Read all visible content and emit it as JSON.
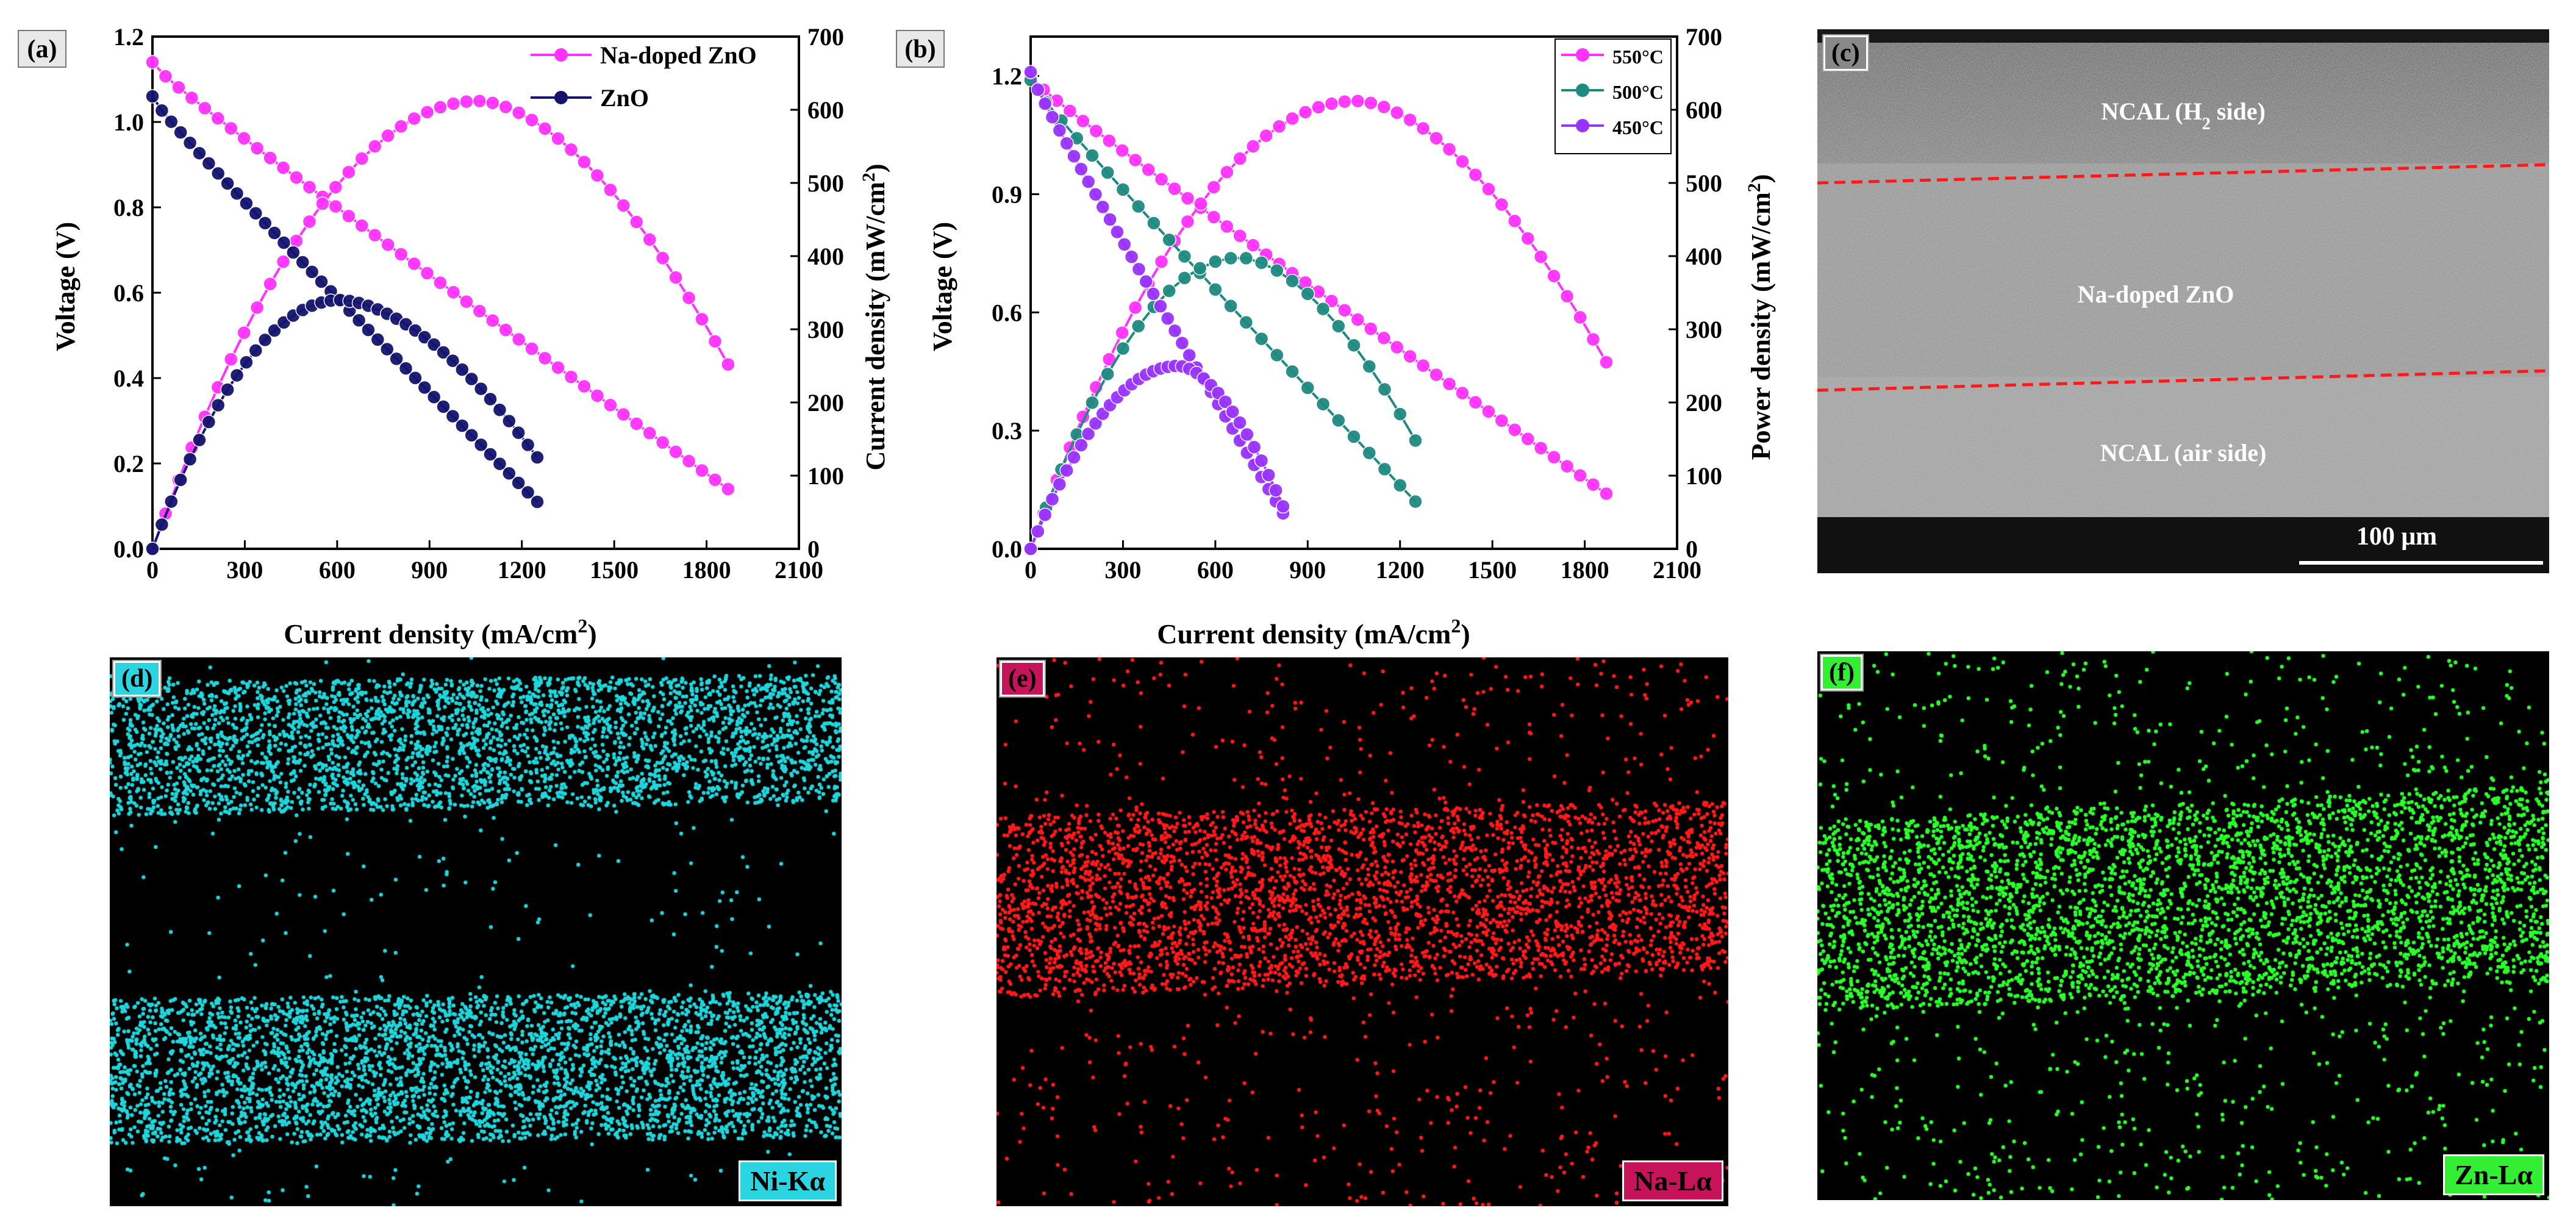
{
  "chart_data": [
    {
      "panel": "(a)",
      "type": "line",
      "xlabel": "Current density (mA/cm",
      "xlabel_sup": "2",
      "xlabel_end": ")",
      "ylabel_left": "Voltage (V)",
      "ylabel_right": "Current density (mW/cm",
      "ylabel_right_sup": "2",
      "ylabel_right_end": ")",
      "xlim": [
        0,
        2100
      ],
      "ylim_left": [
        0,
        1.2
      ],
      "ylim_right": [
        0,
        700
      ],
      "xticks": [
        "0",
        "300",
        "600",
        "900",
        "1200",
        "1500",
        "1800",
        "2100"
      ],
      "yticks_left": [
        "0.0",
        "0.2",
        "0.4",
        "0.6",
        "0.8",
        "1.0",
        "1.2"
      ],
      "yticks_right": [
        "0",
        "100",
        "200",
        "300",
        "400",
        "500",
        "600",
        "700"
      ],
      "legend": [
        "Na-doped ZnO",
        "ZnO"
      ],
      "series": [
        {
          "name": "Na-doped ZnO",
          "color": "#ff33ff",
          "axis": "left",
          "kind": "linear",
          "x0": 0,
          "x1": 1870,
          "y0": 1.14,
          "y1": 0.14,
          "n": 45
        },
        {
          "name": "Na-doped ZnO",
          "color": "#ff33ff",
          "axis": "right",
          "kind": "power",
          "x0": 0,
          "x1": 1870,
          "peak_x": 1060,
          "peak": 612,
          "end": 252,
          "n": 45
        },
        {
          "name": "ZnO",
          "color": "#14146e",
          "axis": "left",
          "kind": "linear",
          "x0": 0,
          "x1": 1250,
          "y0": 1.06,
          "y1": 0.11,
          "n": 42
        },
        {
          "name": "ZnO",
          "color": "#14146e",
          "axis": "right",
          "kind": "power",
          "x0": 0,
          "x1": 1250,
          "peak_x": 610,
          "peak": 340,
          "end": 125,
          "n": 42
        }
      ]
    },
    {
      "panel": "(b)",
      "type": "line",
      "xlabel": "Current density (mA/cm",
      "xlabel_sup": "2",
      "xlabel_end": ")",
      "ylabel_left": "Voltage (V)",
      "ylabel_right": "Power density (mW/cm",
      "ylabel_right_sup": "2",
      "ylabel_right_end": ")",
      "xlim": [
        0,
        2100
      ],
      "ylim_left": [
        0,
        1.3
      ],
      "ylim_right": [
        0,
        700
      ],
      "xticks": [
        "0",
        "300",
        "600",
        "900",
        "1200",
        "1500",
        "1800",
        "2100"
      ],
      "yticks_left": [
        "0.0",
        "0.3",
        "0.6",
        "0.9",
        "1.2"
      ],
      "yticks_left_values": [
        0,
        0.3,
        0.6,
        0.9,
        1.2
      ],
      "yticks_right": [
        "0",
        "100",
        "200",
        "300",
        "400",
        "500",
        "600",
        "700"
      ],
      "legend": [
        "550°C",
        "500°C",
        "450°C"
      ],
      "series": [
        {
          "name": "550°C",
          "color": "#ff33ff",
          "axis": "left",
          "kind": "linear",
          "x0": 0,
          "x1": 1870,
          "y0": 1.2,
          "y1": 0.14,
          "n": 45
        },
        {
          "name": "550°C",
          "color": "#ff33ff",
          "axis": "right",
          "kind": "power",
          "x0": 0,
          "x1": 1870,
          "peak_x": 1060,
          "peak": 612,
          "end": 255,
          "n": 45
        },
        {
          "name": "500°C",
          "color": "#1f8a80",
          "axis": "left",
          "kind": "linear",
          "x0": 0,
          "x1": 1250,
          "y0": 1.19,
          "y1": 0.12,
          "n": 26
        },
        {
          "name": "500°C",
          "color": "#1f8a80",
          "axis": "right",
          "kind": "power",
          "x0": 0,
          "x1": 1250,
          "peak_x": 680,
          "peak": 398,
          "end": 148,
          "n": 26
        },
        {
          "name": "450°C",
          "color": "#9933ff",
          "axis": "left",
          "kind": "linear",
          "x0": 0,
          "x1": 820,
          "y0": 1.21,
          "y1": 0.09,
          "n": 36
        },
        {
          "name": "450°C",
          "color": "#9933ff",
          "axis": "right",
          "kind": "power",
          "x0": 0,
          "x1": 820,
          "peak_x": 480,
          "peak": 250,
          "end": 58,
          "n": 36
        }
      ]
    }
  ],
  "panel_c": {
    "label": "(c)",
    "top_layer": "NCAL (H",
    "top_layer_sub": "2",
    "top_layer_end": " side)",
    "middle_layer": "Na-doped ZnO",
    "bottom_layer": "NCAL (air side)",
    "scalebar": "100 μm"
  },
  "maps": [
    {
      "label": "(d)",
      "element": "Ni-Kα",
      "color": "#1fd6dc",
      "label_bg": "#2ad4e0"
    },
    {
      "label": "(e)",
      "element": "Na-Lα",
      "color": "#ff1a1a",
      "label_bg": "#c7135a"
    },
    {
      "label": "(f)",
      "element": "Zn-Lα",
      "color": "#2bff2b",
      "label_bg": "#33ee33"
    }
  ]
}
